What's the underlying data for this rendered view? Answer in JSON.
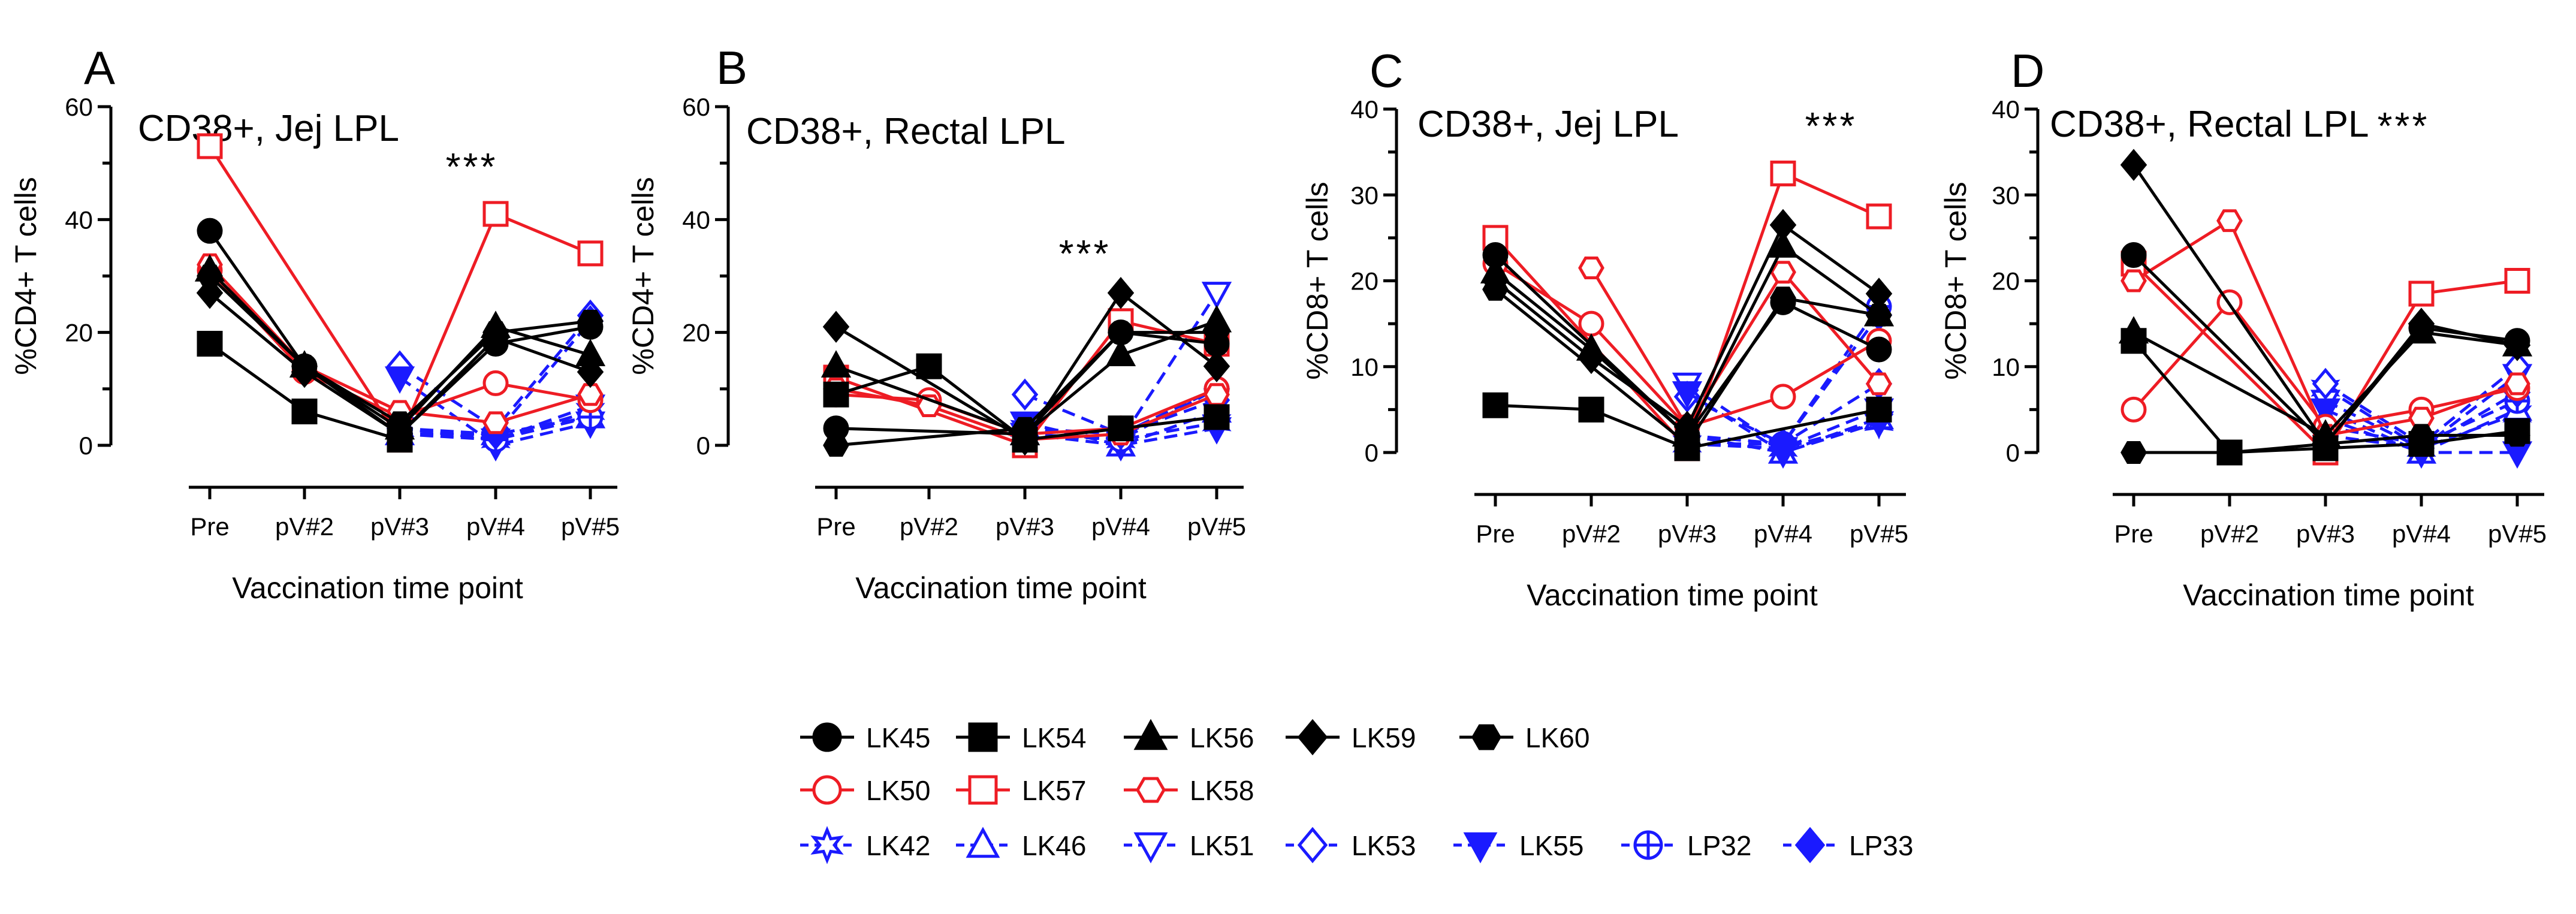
{
  "colors": {
    "black": "#000000",
    "red": "#ee1c24",
    "blue": "#1a1aff"
  },
  "chart_data": [
    {
      "type": "line",
      "panel_label": "A",
      "title": "CD38+, Jej LPL",
      "ylabel": "%CD4+ T cells",
      "xlabel": "Vaccination time point",
      "categories": [
        "Pre",
        "pV#2",
        "pV#3",
        "pV#4",
        "pV#5"
      ],
      "ylim": [
        0,
        60
      ],
      "yticks": [
        "0",
        "20",
        "40",
        "60"
      ],
      "significance": "***",
      "significance_at": "pV#4",
      "series": [
        {
          "name": "LK45",
          "values": [
            38,
            14,
            2,
            18,
            21
          ]
        },
        {
          "name": "LK54",
          "values": [
            18,
            6,
            1,
            null,
            null
          ]
        },
        {
          "name": "LK56",
          "values": [
            31,
            14,
            3,
            21,
            16
          ]
        },
        {
          "name": "LK59",
          "values": [
            27,
            13,
            2,
            19,
            13
          ]
        },
        {
          "name": "LK60",
          "values": [
            30,
            14,
            4,
            20,
            22
          ]
        },
        {
          "name": "LK50",
          "values": [
            31,
            13,
            5,
            11,
            8
          ]
        },
        {
          "name": "LK57",
          "values": [
            53,
            null,
            1,
            41,
            34
          ]
        },
        {
          "name": "LK58",
          "values": [
            32,
            14,
            6,
            4,
            9
          ]
        },
        {
          "name": "LK42",
          "values": [
            null,
            null,
            3,
            1,
            6
          ]
        },
        {
          "name": "LK46",
          "values": [
            null,
            null,
            2,
            2,
            5
          ]
        },
        {
          "name": "LK51",
          "values": [
            null,
            null,
            3,
            1,
            7
          ]
        },
        {
          "name": "LK53",
          "values": [
            null,
            null,
            14,
            3,
            23
          ]
        },
        {
          "name": "LK55",
          "values": [
            null,
            null,
            12,
            0,
            4
          ]
        },
        {
          "name": "LP32",
          "values": [
            null,
            null,
            2,
            1,
            5
          ]
        },
        {
          "name": "LP33",
          "values": [
            null,
            null,
            3,
            2,
            22
          ]
        }
      ]
    },
    {
      "type": "line",
      "panel_label": "B",
      "title": "CD38+, Rectal LPL",
      "ylabel": "%CD4+ T cells",
      "xlabel": "Vaccination time point",
      "categories": [
        "Pre",
        "pV#2",
        "pV#3",
        "pV#4",
        "pV#5"
      ],
      "ylim": [
        0,
        60
      ],
      "yticks": [
        "0",
        "20",
        "40",
        "60"
      ],
      "significance": "***",
      "significance_at": "pV#4",
      "series": [
        {
          "name": "LK45",
          "values": [
            3,
            null,
            2,
            20,
            18
          ]
        },
        {
          "name": "LK54",
          "values": [
            9,
            14,
            1,
            3,
            5
          ]
        },
        {
          "name": "LK56",
          "values": [
            14,
            null,
            2,
            16,
            22
          ]
        },
        {
          "name": "LK59",
          "values": [
            21,
            null,
            1,
            27,
            14
          ]
        },
        {
          "name": "LK60",
          "values": [
            0,
            null,
            3,
            20,
            20
          ]
        },
        {
          "name": "LK50",
          "values": [
            9,
            8,
            2,
            3,
            10
          ]
        },
        {
          "name": "LK57",
          "values": [
            12,
            null,
            0,
            22,
            18
          ]
        },
        {
          "name": "LK58",
          "values": [
            10,
            7,
            1,
            2,
            9
          ]
        },
        {
          "name": "LK42",
          "values": [
            null,
            null,
            3,
            1,
            4
          ]
        },
        {
          "name": "LK46",
          "values": [
            null,
            null,
            2,
            0,
            6
          ]
        },
        {
          "name": "LK51",
          "values": [
            null,
            null,
            2,
            1,
            27
          ]
        },
        {
          "name": "LK53",
          "values": [
            null,
            null,
            9,
            2,
            10
          ]
        },
        {
          "name": "LK55",
          "values": [
            null,
            null,
            4,
            0,
            3
          ]
        },
        {
          "name": "LP32",
          "values": [
            null,
            null,
            2,
            1,
            10
          ]
        },
        {
          "name": "LP33",
          "values": [
            null,
            null,
            3,
            2,
            8
          ]
        }
      ]
    },
    {
      "type": "line",
      "panel_label": "C",
      "title": "CD38+, Jej LPL",
      "ylabel": "%CD8+ T cells",
      "xlabel": "Vaccination time point",
      "categories": [
        "Pre",
        "pV#2",
        "pV#3",
        "pV#4",
        "pV#5"
      ],
      "ylim": [
        0,
        40
      ],
      "yticks": [
        "0",
        "10",
        "20",
        "30",
        "40"
      ],
      "significance": "***",
      "significance_at": "pV#4",
      "series": [
        {
          "name": "LK45",
          "values": [
            23,
            null,
            2,
            17.5,
            12
          ]
        },
        {
          "name": "LK54",
          "values": [
            5.5,
            5,
            0.5,
            null,
            5
          ]
        },
        {
          "name": "LK56",
          "values": [
            21,
            12,
            2,
            24,
            16
          ]
        },
        {
          "name": "LK59",
          "values": [
            20,
            11,
            3,
            26.5,
            18.5
          ]
        },
        {
          "name": "LK60",
          "values": [
            19,
            null,
            1,
            18,
            16
          ]
        },
        {
          "name": "LK50",
          "values": [
            22,
            15,
            3,
            6.5,
            13
          ]
        },
        {
          "name": "LK57",
          "values": [
            25,
            null,
            0.5,
            32.5,
            27.5
          ]
        },
        {
          "name": "LK58",
          "values": [
            null,
            21.5,
            3,
            21,
            8
          ]
        },
        {
          "name": "LK42",
          "values": [
            null,
            null,
            1,
            0.5,
            3.5
          ]
        },
        {
          "name": "LK46",
          "values": [
            null,
            null,
            2,
            0,
            4
          ]
        },
        {
          "name": "LK51",
          "values": [
            null,
            null,
            8,
            0.5,
            5
          ]
        },
        {
          "name": "LK53",
          "values": [
            null,
            null,
            6.5,
            1,
            8
          ]
        },
        {
          "name": "LK55",
          "values": [
            null,
            null,
            7,
            0,
            3.5
          ]
        },
        {
          "name": "LP32",
          "values": [
            null,
            null,
            2,
            1,
            17
          ]
        },
        {
          "name": "LP33",
          "values": [
            null,
            null,
            1,
            1,
            16
          ]
        }
      ]
    },
    {
      "type": "line",
      "panel_label": "D",
      "title": "CD38+, Rectal LPL",
      "ylabel": "%CD8+ T cells",
      "xlabel": "Vaccination time point",
      "categories": [
        "Pre",
        "pV#2",
        "pV#3",
        "pV#4",
        "pV#5"
      ],
      "ylim": [
        0,
        40
      ],
      "yticks": [
        "0",
        "10",
        "20",
        "30",
        "40"
      ],
      "significance": "***",
      "significance_at": "pV#4",
      "series": [
        {
          "name": "LK45",
          "values": [
            23,
            null,
            1,
            14.5,
            13
          ]
        },
        {
          "name": "LK54",
          "values": [
            13,
            0,
            0.5,
            1,
            2.5
          ]
        },
        {
          "name": "LK56",
          "values": [
            14,
            null,
            2,
            14,
            12.5
          ]
        },
        {
          "name": "LK59",
          "values": [
            33.5,
            null,
            1,
            15,
            12.5
          ]
        },
        {
          "name": "LK60",
          "values": [
            0,
            0,
            1,
            2,
            2
          ]
        },
        {
          "name": "LK50",
          "values": [
            5,
            17.5,
            3,
            5,
            7.5
          ]
        },
        {
          "name": "LK57",
          "values": [
            22,
            null,
            0,
            18.5,
            20
          ]
        },
        {
          "name": "LK58",
          "values": [
            20,
            27,
            2,
            4,
            8
          ]
        },
        {
          "name": "LK42",
          "values": [
            null,
            null,
            7.5,
            0.5,
            4.5
          ]
        },
        {
          "name": "LK46",
          "values": [
            null,
            null,
            4,
            0,
            5
          ]
        },
        {
          "name": "LK51",
          "values": [
            null,
            null,
            6,
            0.5,
            9
          ]
        },
        {
          "name": "LK53",
          "values": [
            null,
            null,
            8,
            1,
            10
          ]
        },
        {
          "name": "LK55",
          "values": [
            null,
            null,
            5,
            0,
            0
          ]
        },
        {
          "name": "LP32",
          "values": [
            null,
            null,
            3,
            1,
            6
          ]
        },
        {
          "name": "LP33",
          "values": [
            null,
            null,
            2,
            0.5,
            7
          ]
        }
      ]
    }
  ],
  "legend": [
    {
      "name": "LK45",
      "color": "black",
      "marker": "circle",
      "filled": true,
      "dash": false
    },
    {
      "name": "LK54",
      "color": "black",
      "marker": "square",
      "filled": true,
      "dash": false
    },
    {
      "name": "LK56",
      "color": "black",
      "marker": "triangle",
      "filled": true,
      "dash": false
    },
    {
      "name": "LK59",
      "color": "black",
      "marker": "diamond",
      "filled": true,
      "dash": false
    },
    {
      "name": "LK60",
      "color": "black",
      "marker": "hexagon",
      "filled": true,
      "dash": false
    },
    {
      "name": "LK50",
      "color": "red",
      "marker": "circle",
      "filled": false,
      "dash": false
    },
    {
      "name": "LK57",
      "color": "red",
      "marker": "square",
      "filled": false,
      "dash": false
    },
    {
      "name": "LK58",
      "color": "red",
      "marker": "hexagon",
      "filled": false,
      "dash": false
    },
    {
      "name": "LK42",
      "color": "blue",
      "marker": "star",
      "filled": false,
      "dash": true
    },
    {
      "name": "LK46",
      "color": "blue",
      "marker": "triangle",
      "filled": false,
      "dash": true
    },
    {
      "name": "LK51",
      "color": "blue",
      "marker": "triangle-down",
      "filled": false,
      "dash": true
    },
    {
      "name": "LK53",
      "color": "blue",
      "marker": "diamond",
      "filled": false,
      "dash": true
    },
    {
      "name": "LK55",
      "color": "blue",
      "marker": "triangle-down",
      "filled": true,
      "dash": true
    },
    {
      "name": "LP32",
      "color": "blue",
      "marker": "crossed-circle",
      "filled": false,
      "dash": true
    },
    {
      "name": "LP33",
      "color": "blue",
      "marker": "diamond",
      "filled": true,
      "dash": true
    }
  ]
}
